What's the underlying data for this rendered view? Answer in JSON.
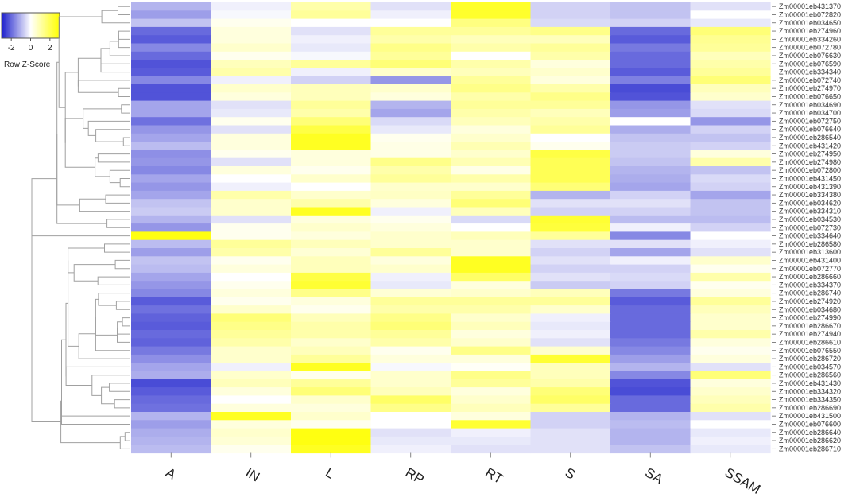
{
  "chart_data": {
    "type": "heatmap",
    "columns": [
      "A",
      "IN",
      "L",
      "RP",
      "RT",
      "S",
      "SA",
      "SSAM"
    ],
    "rows": [
      "Zm00001eb431370",
      "Zm00001eb072820",
      "Zm00001eb034650",
      "Zm00001eb274960",
      "Zm00001eb334260",
      "Zm00001eb072780",
      "Zm00001eb076630",
      "Zm00001eb076590",
      "Zm00001eb334340",
      "Zm00001eb072740",
      "Zm00001eb274970",
      "Zm00001eb076650",
      "Zm00001eb034690",
      "Zm00001eb034700",
      "Zm00001eb072750",
      "Zm00001eb076640",
      "Zm00001eb286540",
      "Zm00001eb431420",
      "Zm00001eb274950",
      "Zm00001eb274980",
      "Zm00001eb072800",
      "Zm00001eb431450",
      "Zm00001eb431390",
      "Zm00001eb334380",
      "Zm00001eb034620",
      "Zm00001eb334310",
      "Zm00001eb034530",
      "Zm00001eb072730",
      "Zm00001eb334640",
      "Zm00001eb286580",
      "Zm00001eb313600",
      "Zm00001eb431400",
      "Zm00001eb072770",
      "Zm00001eb286660",
      "Zm00001eb334370",
      "Zm00001eb286740",
      "Zm00001eb274920",
      "Zm00001eb034680",
      "Zm00001eb274990",
      "Zm00001eb286670",
      "Zm00001eb274940",
      "Zm00001eb286610",
      "Zm00001eb076550",
      "Zm00001eb286720",
      "Zm00001eb034570",
      "Zm00001eb286560",
      "Zm00001eb431430",
      "Zm00001eb334320",
      "Zm00001eb334350",
      "Zm00001eb286690",
      "Zm00001eb431500",
      "Zm00001eb076600",
      "Zm00001eb286640",
      "Zm00001eb286620",
      "Zm00001eb286710"
    ],
    "values": [
      [
        -1.0,
        -0.2,
        1.0,
        -0.4,
        2.5,
        -0.6,
        -0.8,
        -0.4
      ],
      [
        -1.3,
        -0.1,
        1.2,
        -0.2,
        2.5,
        -0.6,
        -0.8,
        0.0
      ],
      [
        -0.8,
        0.2,
        0.0,
        0.0,
        1.5,
        -0.5,
        -0.6,
        -0.3
      ],
      [
        -2.0,
        0.4,
        -0.4,
        1.2,
        1.2,
        1.4,
        -2.0,
        1.6
      ],
      [
        -2.2,
        0.4,
        -0.2,
        1.0,
        0.8,
        0.8,
        -2.2,
        1.3
      ],
      [
        -1.6,
        0.6,
        -0.3,
        1.4,
        1.0,
        1.2,
        -1.8,
        1.2
      ],
      [
        -2.0,
        0.2,
        -0.1,
        1.2,
        0.0,
        1.0,
        -2.0,
        0.8
      ],
      [
        -2.3,
        0.8,
        1.2,
        1.6,
        1.0,
        0.4,
        -2.0,
        1.0
      ],
      [
        -2.2,
        1.0,
        -0.2,
        0.6,
        0.8,
        0.6,
        -2.2,
        1.2
      ],
      [
        -1.6,
        -0.2,
        -0.6,
        -1.4,
        1.2,
        0.4,
        -1.7,
        1.6
      ],
      [
        -2.3,
        0.6,
        0.8,
        0.6,
        1.4,
        1.0,
        -2.4,
        0.8
      ],
      [
        -2.3,
        0.4,
        0.8,
        0.4,
        1.0,
        1.4,
        -2.3,
        0.6
      ],
      [
        -1.2,
        -0.4,
        1.2,
        -1.0,
        1.2,
        1.2,
        -1.4,
        -0.4
      ],
      [
        -1.2,
        -0.3,
        1.0,
        -1.2,
        1.0,
        0.8,
        -1.3,
        -0.5
      ],
      [
        -1.9,
        0.2,
        1.6,
        -0.5,
        0.8,
        1.0,
        0.0,
        -1.4
      ],
      [
        -1.4,
        -0.4,
        2.2,
        -0.3,
        0.4,
        1.2,
        -1.1,
        -0.6
      ],
      [
        -1.2,
        0.4,
        2.6,
        0.2,
        0.6,
        0.0,
        -0.8,
        -0.8
      ],
      [
        -0.9,
        0.4,
        2.6,
        0.3,
        0.9,
        0.2,
        -0.7,
        -0.6
      ],
      [
        -1.5,
        0.2,
        0.4,
        0.3,
        0.6,
        2.2,
        -0.7,
        0.4
      ],
      [
        -1.4,
        -0.4,
        0.4,
        1.4,
        0.9,
        2.0,
        -0.8,
        1.0
      ],
      [
        -1.6,
        0.4,
        0.2,
        1.0,
        0.3,
        2.0,
        -1.0,
        -0.8
      ],
      [
        -1.2,
        0.0,
        0.6,
        1.2,
        1.0,
        2.0,
        -1.1,
        -0.5
      ],
      [
        -1.4,
        -0.2,
        0.0,
        0.6,
        0.6,
        1.6,
        -1.2,
        -0.6
      ],
      [
        -1.2,
        1.0,
        0.6,
        0.7,
        1.2,
        -1.0,
        -0.6,
        -1.2
      ],
      [
        -0.8,
        0.6,
        1.0,
        0.4,
        1.6,
        -0.4,
        -0.4,
        -0.8
      ],
      [
        -0.7,
        0.6,
        2.6,
        -0.2,
        0.8,
        -0.6,
        -0.6,
        -0.8
      ],
      [
        -1.0,
        -0.4,
        0.4,
        0.2,
        -0.5,
        2.4,
        -0.9,
        -0.9
      ],
      [
        -1.4,
        0.2,
        0.6,
        0.4,
        0.0,
        2.3,
        -0.2,
        -0.6
      ],
      [
        2.8,
        0.2,
        0.4,
        0.6,
        0.8,
        1.2,
        -1.6,
        0.0
      ],
      [
        -0.9,
        1.2,
        0.8,
        0.6,
        0.6,
        -0.4,
        -0.4,
        -0.2
      ],
      [
        -1.3,
        1.0,
        0.5,
        1.2,
        0.6,
        -0.6,
        -1.2,
        -0.4
      ],
      [
        -0.8,
        0.2,
        0.8,
        0.4,
        2.6,
        -0.4,
        -0.2,
        0.6
      ],
      [
        -0.9,
        0.4,
        0.8,
        0.6,
        2.6,
        -0.6,
        -0.6,
        0.2
      ],
      [
        -1.2,
        0.0,
        2.2,
        -0.2,
        1.8,
        -0.4,
        -0.5,
        1.0
      ],
      [
        -1.4,
        0.2,
        2.4,
        -0.3,
        0.4,
        -0.7,
        -0.6,
        0.2
      ],
      [
        -1.6,
        0.4,
        1.4,
        0.5,
        0.6,
        0.8,
        -1.8,
        0.4
      ],
      [
        -2.2,
        0.2,
        0.4,
        1.2,
        1.2,
        1.2,
        -2.2,
        1.2
      ],
      [
        -1.9,
        0.6,
        0.2,
        1.0,
        1.0,
        0.6,
        -2.0,
        0.8
      ],
      [
        -2.1,
        1.6,
        0.8,
        1.4,
        0.6,
        -0.2,
        -2.0,
        0.6
      ],
      [
        -2.2,
        1.4,
        1.0,
        1.6,
        0.8,
        -0.3,
        -2.0,
        0.6
      ],
      [
        -2.0,
        1.2,
        1.0,
        1.2,
        0.4,
        -0.2,
        -2.0,
        1.0
      ],
      [
        -2.1,
        1.0,
        0.6,
        1.0,
        0.6,
        -0.4,
        -1.8,
        0.4
      ],
      [
        -1.8,
        0.6,
        0.8,
        0.2,
        1.4,
        0.6,
        -1.6,
        0.2
      ],
      [
        -1.5,
        0.6,
        1.2,
        0.4,
        0.4,
        2.4,
        -1.3,
        0.4
      ],
      [
        -1.2,
        -0.2,
        2.6,
        -0.1,
        0.1,
        0.8,
        -1.0,
        -0.4
      ],
      [
        -1.1,
        0.6,
        0.2,
        0.6,
        1.4,
        0.8,
        -1.6,
        1.6
      ],
      [
        -2.4,
        0.8,
        1.2,
        0.6,
        1.2,
        1.0,
        -2.3,
        0.4
      ],
      [
        -2.2,
        0.4,
        1.6,
        0.8,
        0.4,
        1.6,
        -2.4,
        0.6
      ],
      [
        -2.0,
        0.0,
        0.6,
        1.8,
        0.6,
        1.8,
        -2.0,
        0.8
      ],
      [
        -1.9,
        0.4,
        0.4,
        1.4,
        0.8,
        1.2,
        -2.0,
        1.0
      ],
      [
        -1.0,
        2.6,
        0.6,
        0.0,
        0.4,
        -0.6,
        -1.0,
        -0.4
      ],
      [
        -1.3,
        0.4,
        0.2,
        0.0,
        2.4,
        -0.6,
        -0.9,
        0.0
      ],
      [
        -1.1,
        0.6,
        2.8,
        -0.4,
        -0.2,
        -0.4,
        -1.0,
        -0.3
      ],
      [
        -1.0,
        0.5,
        2.8,
        -0.3,
        -0.3,
        -0.4,
        -1.0,
        -0.2
      ],
      [
        -0.9,
        0.2,
        2.6,
        -0.2,
        -0.4,
        -0.4,
        -0.8,
        -0.3
      ]
    ],
    "colors": {
      "low": "#1c1fcc",
      "mid": "#ffffff",
      "high": "#ffff00"
    },
    "value_range": [
      -3,
      3
    ],
    "legend": {
      "label": "Row Z-Score",
      "ticks": [
        -2,
        0,
        2
      ],
      "tick_labels": [
        "-2",
        "0",
        "2"
      ],
      "position": "top-left"
    },
    "dendrogram": "left",
    "title": "",
    "xlabel": "",
    "ylabel": ""
  }
}
